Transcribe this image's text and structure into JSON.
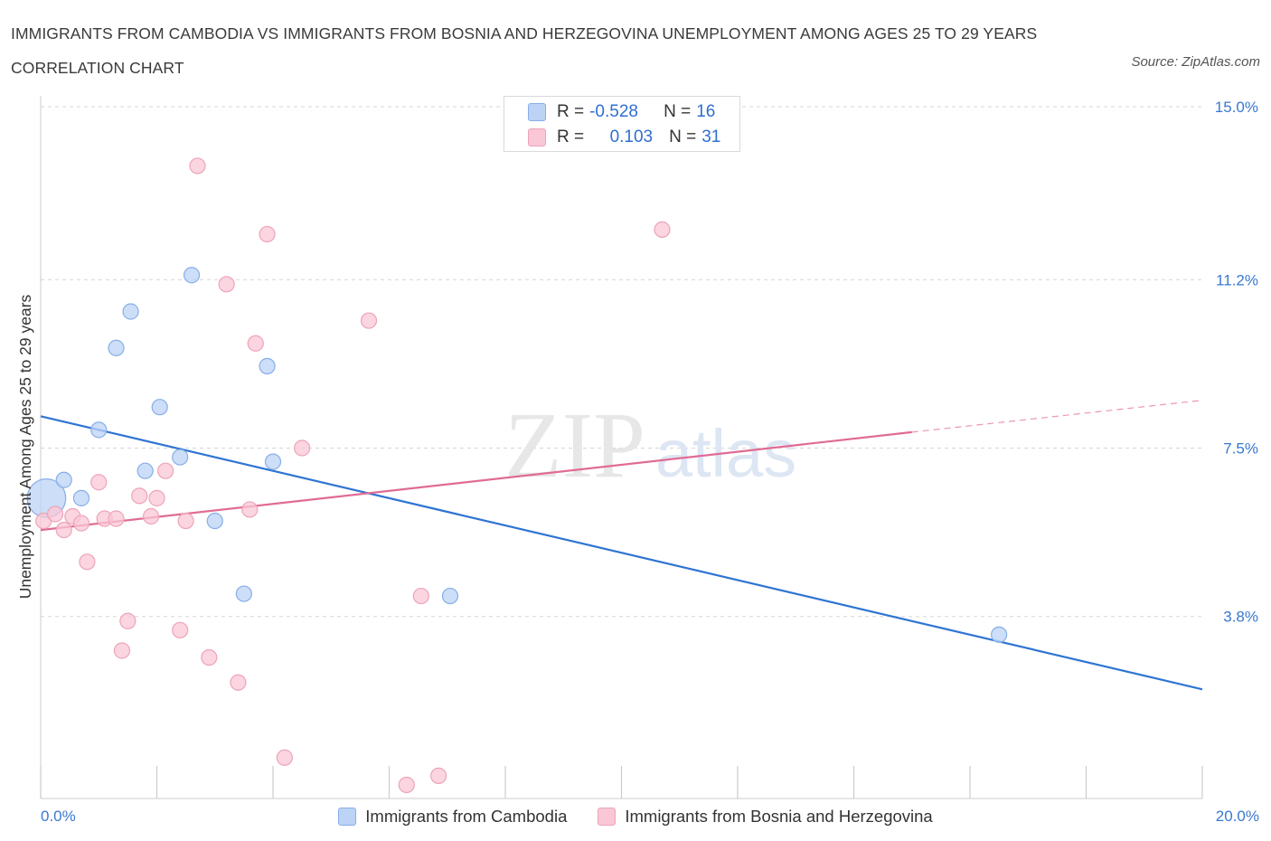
{
  "header": {
    "title": "IMMIGRANTS FROM CAMBODIA VS IMMIGRANTS FROM BOSNIA AND HERZEGOVINA UNEMPLOYMENT AMONG AGES 25 TO 29 YEARS CORRELATION CHART",
    "source": "Source: ZipAtlas.com"
  },
  "watermark": {
    "zip": "ZIP",
    "atlas": "atlas"
  },
  "colors": {
    "blue_fill": "#bcd3f5",
    "blue_stroke": "#86aee8",
    "blue_line": "#2f74d3",
    "pink_fill": "#f9c7d5",
    "pink_stroke": "#eea3b9",
    "pink_line": "#e06b94",
    "grid": "#d6d6d6",
    "tick_label": "#3a78d0"
  },
  "stats": {
    "rows": [
      {
        "r_label": "R =",
        "r_value": "-0.528",
        "n_label": "N =",
        "n_value": "16"
      },
      {
        "r_label": "R =",
        "r_value": "0.103",
        "n_label": "N =",
        "n_value": "31"
      }
    ]
  },
  "chart_data": {
    "type": "scatter",
    "title": "IMMIGRANTS FROM CAMBODIA VS IMMIGRANTS FROM BOSNIA AND HERZEGOVINA UNEMPLOYMENT AMONG AGES 25 TO 29 YEARS CORRELATION CHART",
    "xlabel": "",
    "ylabel": "Unemployment Among Ages 25 to 29 years",
    "xlim": [
      0,
      20
    ],
    "ylim": [
      0,
      15
    ],
    "x_tick_labels": [
      {
        "value": 0,
        "label": "0.0%"
      },
      {
        "value": 20,
        "label": "20.0%"
      }
    ],
    "x_minor_ticks": [
      0,
      2,
      4,
      6,
      8,
      10,
      12,
      14,
      16,
      18,
      20
    ],
    "y_tick_labels": [
      {
        "value": 3.8,
        "label": "3.8%"
      },
      {
        "value": 7.5,
        "label": "7.5%"
      },
      {
        "value": 11.2,
        "label": "11.2%"
      },
      {
        "value": 15.0,
        "label": "15.0%"
      }
    ],
    "grid": true,
    "legend_position": "bottom",
    "series": [
      {
        "name": "Immigrants from Cambodia",
        "color": "#bcd3f5",
        "points": [
          {
            "x": 0.1,
            "y": 6.4,
            "size": 2.5
          },
          {
            "x": 0.4,
            "y": 6.8
          },
          {
            "x": 0.7,
            "y": 6.4
          },
          {
            "x": 1.0,
            "y": 7.9
          },
          {
            "x": 1.3,
            "y": 9.7
          },
          {
            "x": 1.55,
            "y": 10.5
          },
          {
            "x": 1.8,
            "y": 7.0
          },
          {
            "x": 2.05,
            "y": 8.4
          },
          {
            "x": 2.4,
            "y": 7.3
          },
          {
            "x": 2.6,
            "y": 11.3
          },
          {
            "x": 3.0,
            "y": 5.9
          },
          {
            "x": 3.5,
            "y": 4.3
          },
          {
            "x": 3.9,
            "y": 9.3
          },
          {
            "x": 4.0,
            "y": 7.2
          },
          {
            "x": 7.05,
            "y": 4.25
          },
          {
            "x": 16.5,
            "y": 3.4
          }
        ],
        "trend": {
          "x": [
            0,
            20
          ],
          "y": [
            8.2,
            2.2
          ],
          "dashed_extension": false
        }
      },
      {
        "name": "Immigrants from Bosnia and Herzegovina",
        "color": "#f9c7d5",
        "points": [
          {
            "x": 0.05,
            "y": 5.9
          },
          {
            "x": 0.25,
            "y": 6.05
          },
          {
            "x": 0.4,
            "y": 5.7
          },
          {
            "x": 0.55,
            "y": 6.0
          },
          {
            "x": 0.7,
            "y": 5.85
          },
          {
            "x": 0.8,
            "y": 5.0
          },
          {
            "x": 1.0,
            "y": 6.75
          },
          {
            "x": 1.1,
            "y": 5.95
          },
          {
            "x": 1.3,
            "y": 5.95
          },
          {
            "x": 1.5,
            "y": 3.7
          },
          {
            "x": 1.4,
            "y": 3.05
          },
          {
            "x": 1.7,
            "y": 6.45
          },
          {
            "x": 1.9,
            "y": 6.0
          },
          {
            "x": 2.0,
            "y": 6.4
          },
          {
            "x": 2.15,
            "y": 7.0
          },
          {
            "x": 2.4,
            "y": 3.5
          },
          {
            "x": 2.5,
            "y": 5.9
          },
          {
            "x": 2.7,
            "y": 13.7
          },
          {
            "x": 2.9,
            "y": 2.9
          },
          {
            "x": 3.2,
            "y": 11.1
          },
          {
            "x": 3.4,
            "y": 2.35
          },
          {
            "x": 3.6,
            "y": 6.15
          },
          {
            "x": 3.7,
            "y": 9.8
          },
          {
            "x": 3.9,
            "y": 12.2
          },
          {
            "x": 4.2,
            "y": 0.7
          },
          {
            "x": 4.5,
            "y": 7.5
          },
          {
            "x": 5.65,
            "y": 10.3
          },
          {
            "x": 6.3,
            "y": 0.1
          },
          {
            "x": 6.55,
            "y": 4.25
          },
          {
            "x": 6.85,
            "y": 0.3
          },
          {
            "x": 10.7,
            "y": 12.3
          }
        ],
        "trend": {
          "x": [
            0,
            15
          ],
          "y": [
            5.7,
            7.85
          ],
          "dashed_extension": {
            "x": [
              15,
              20
            ],
            "y": [
              7.85,
              8.55
            ]
          }
        }
      }
    ]
  }
}
